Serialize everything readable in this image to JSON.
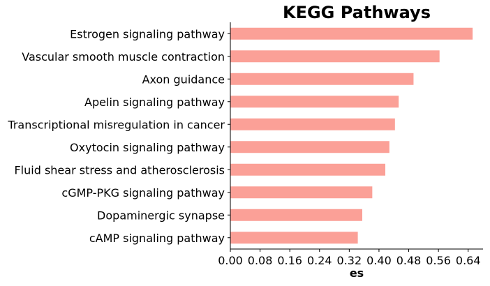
{
  "chart_data": {
    "type": "bar",
    "orientation": "horizontal",
    "title": "KEGG Pathways",
    "xlabel": "es",
    "ylabel": "",
    "xlim": [
      0,
      0.68
    ],
    "xticks": [
      "0.00",
      "0.08",
      "0.16",
      "0.24",
      "0.32",
      "0.40",
      "0.48",
      "0.56",
      "0.64"
    ],
    "grid": false,
    "bar_color": "#fba097",
    "categories": [
      "Estrogen signaling pathway",
      "Vascular smooth muscle contraction",
      "Axon guidance",
      "Apelin signaling pathway",
      "Transcriptional misregulation in cancer",
      "Oxytocin signaling pathway",
      "Fluid shear stress and atherosclerosis",
      "cGMP-PKG signaling pathway",
      "Dopaminergic synapse",
      "cAMP signaling pathway"
    ],
    "values": [
      0.652,
      0.563,
      0.493,
      0.453,
      0.443,
      0.428,
      0.417,
      0.382,
      0.355,
      0.343
    ]
  }
}
